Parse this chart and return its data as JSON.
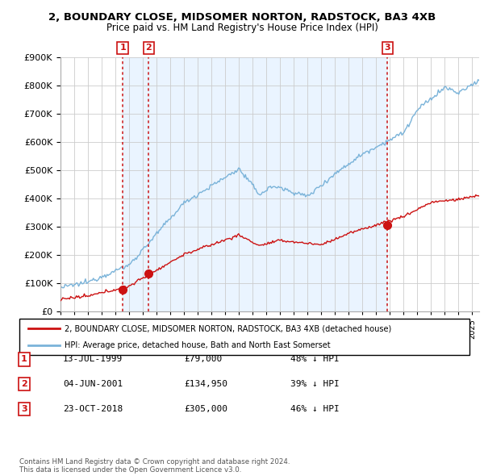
{
  "title": "2, BOUNDARY CLOSE, MIDSOMER NORTON, RADSTOCK, BA3 4XB",
  "subtitle": "Price paid vs. HM Land Registry's House Price Index (HPI)",
  "hpi_color": "#7ab3d9",
  "price_color": "#cc1111",
  "vline_color": "#cc1111",
  "shade_color": "#ddeeff",
  "legend_line1": "2, BOUNDARY CLOSE, MIDSOMER NORTON, RADSTOCK, BA3 4XB (detached house)",
  "legend_line2": "HPI: Average price, detached house, Bath and North East Somerset",
  "transactions": [
    {
      "num": 1,
      "date": "13-JUL-1999",
      "price": "£79,000",
      "pct": "48% ↓ HPI",
      "x_year": 1999.53
    },
    {
      "num": 2,
      "date": "04-JUN-2001",
      "price": "£134,950",
      "pct": "39% ↓ HPI",
      "x_year": 2001.42
    },
    {
      "num": 3,
      "date": "23-OCT-2018",
      "price": "£305,000",
      "pct": "46% ↓ HPI",
      "x_year": 2018.81
    }
  ],
  "transaction_price_values": [
    79000,
    134950,
    305000
  ],
  "footer": "Contains HM Land Registry data © Crown copyright and database right 2024.\nThis data is licensed under the Open Government Licence v3.0.",
  "ylim": [
    0,
    900000
  ],
  "xlim_start": 1995.0,
  "xlim_end": 2025.5,
  "yticks": [
    0,
    100000,
    200000,
    300000,
    400000,
    500000,
    600000,
    700000,
    800000,
    900000
  ]
}
